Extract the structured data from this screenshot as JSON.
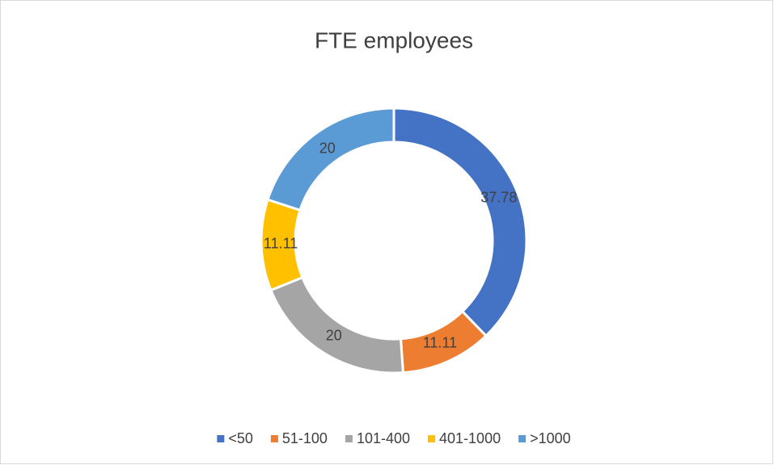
{
  "chart_data": {
    "type": "donut",
    "title": "FTE employees",
    "categories": [
      "<50",
      "51-100",
      "101-400",
      "401-1000",
      ">1000"
    ],
    "values": [
      37.78,
      11.11,
      20,
      11.11,
      20
    ],
    "colors": [
      "#4472c4",
      "#ed7d31",
      "#a5a5a5",
      "#ffc000",
      "#5b9bd5"
    ],
    "legend": "bottom"
  }
}
